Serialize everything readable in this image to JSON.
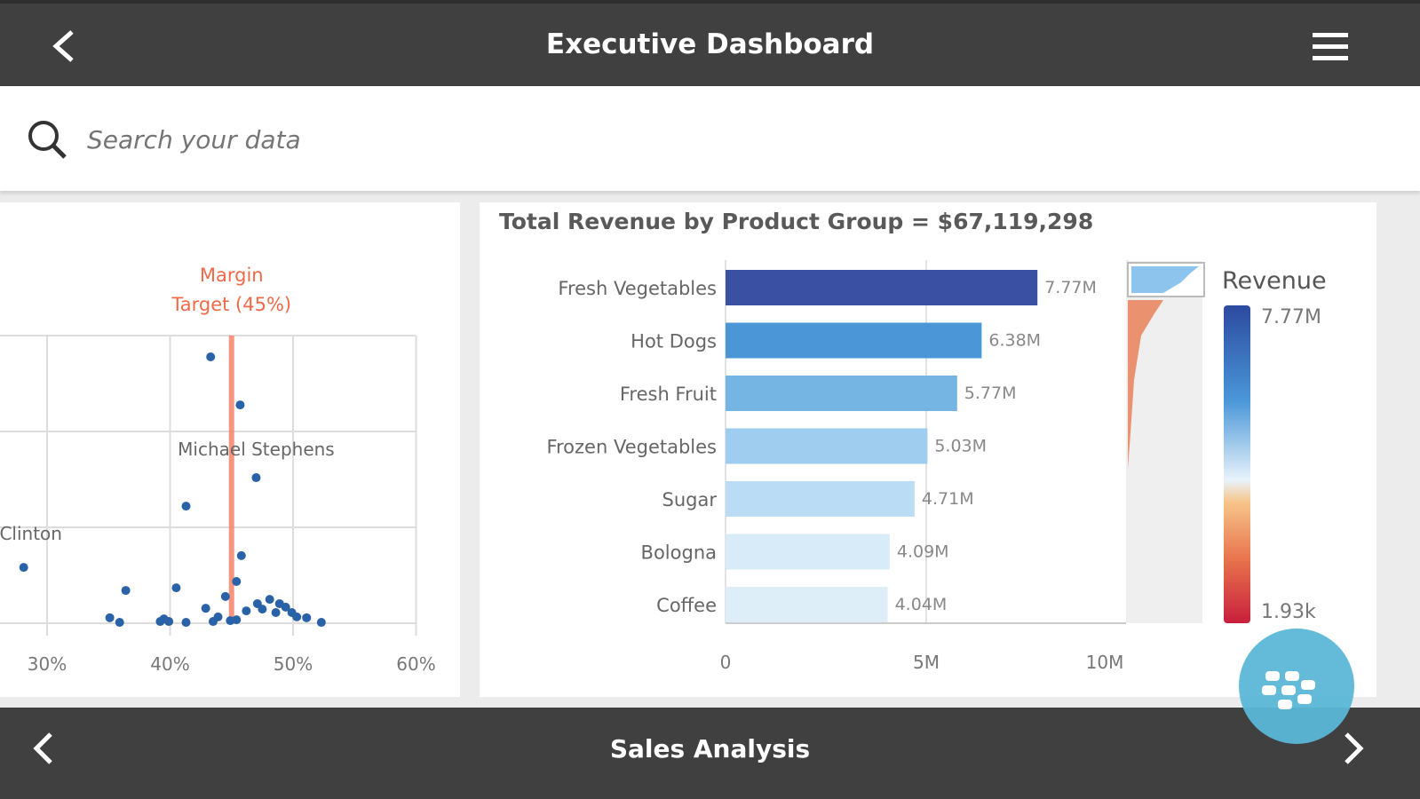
{
  "header": {
    "title": "Executive Dashboard",
    "back_icon": "chevron-left-icon",
    "menu_icon": "hamburger-menu-icon"
  },
  "search": {
    "placeholder": "Search your data",
    "icon": "search-icon"
  },
  "footer": {
    "title": "Sales Analysis",
    "prev_icon": "chevron-left-icon",
    "next_icon": "chevron-right-icon"
  },
  "fab": {
    "icon": "blackberry-logo-icon"
  },
  "chart_data": [
    {
      "type": "scatter",
      "xlim": [
        25,
        60
      ],
      "x_ticks": [
        "30%",
        "40%",
        "50%",
        "60%"
      ],
      "grid": true,
      "reference_line": {
        "x": 45,
        "label_line1": "Margin",
        "label_line2": "Target (45%)",
        "color": "#f4846a"
      },
      "point_color": "#2a62a8",
      "labels": [
        {
          "text": "Michael Stephens",
          "x": 47.0,
          "y": 50.6
        },
        {
          "text": "Clinton",
          "x": 28.1,
          "y": 19.4
        }
      ],
      "points": [
        [
          43.3,
          92.6
        ],
        [
          45.7,
          75.9
        ],
        [
          47.0,
          50.6
        ],
        [
          41.3,
          40.7
        ],
        [
          28.1,
          19.4
        ],
        [
          45.8,
          23.5
        ],
        [
          36.4,
          11.4
        ],
        [
          40.5,
          12.3
        ],
        [
          45.4,
          14.5
        ],
        [
          44.5,
          9.3
        ],
        [
          42.9,
          5.2
        ],
        [
          35.1,
          1.9
        ],
        [
          35.9,
          0.3
        ],
        [
          39.5,
          1.5
        ],
        [
          39.9,
          0.6
        ],
        [
          39.2,
          0.6
        ],
        [
          41.3,
          0.3
        ],
        [
          43.9,
          2.2
        ],
        [
          43.5,
          0.6
        ],
        [
          44.9,
          0.9
        ],
        [
          45.4,
          1.2
        ],
        [
          46.2,
          4.3
        ],
        [
          47.1,
          6.8
        ],
        [
          47.5,
          4.9
        ],
        [
          48.1,
          8.3
        ],
        [
          48.6,
          3.7
        ],
        [
          48.9,
          6.8
        ],
        [
          49.4,
          5.6
        ],
        [
          49.9,
          3.7
        ],
        [
          50.3,
          2.2
        ],
        [
          51.1,
          1.9
        ],
        [
          52.3,
          0.3
        ]
      ]
    },
    {
      "type": "bar",
      "orientation": "horizontal",
      "title": "Total Revenue by Product Group = $67,119,298",
      "categories": [
        "Fresh Vegetables",
        "Hot Dogs",
        "Fresh Fruit",
        "Frozen Vegetables",
        "Sugar",
        "Bologna",
        "Coffee"
      ],
      "values": [
        7.77,
        6.38,
        5.77,
        5.03,
        4.71,
        4.09,
        4.04
      ],
      "value_labels": [
        "7.77M",
        "6.38M",
        "5.77M",
        "5.03M",
        "4.71M",
        "4.09M",
        "4.04M"
      ],
      "colors": [
        "#3a50a2",
        "#4a96d6",
        "#74b5e3",
        "#9ecdef",
        "#badcf4",
        "#d8ebf8",
        "#ddeef9"
      ],
      "unit": "M",
      "xlim": [
        0,
        10
      ],
      "x_ticks": [
        "0",
        "5M",
        "10M"
      ],
      "legend": {
        "title": "Revenue",
        "max": "7.77M",
        "min": "1.93k",
        "position": "right"
      }
    }
  ]
}
